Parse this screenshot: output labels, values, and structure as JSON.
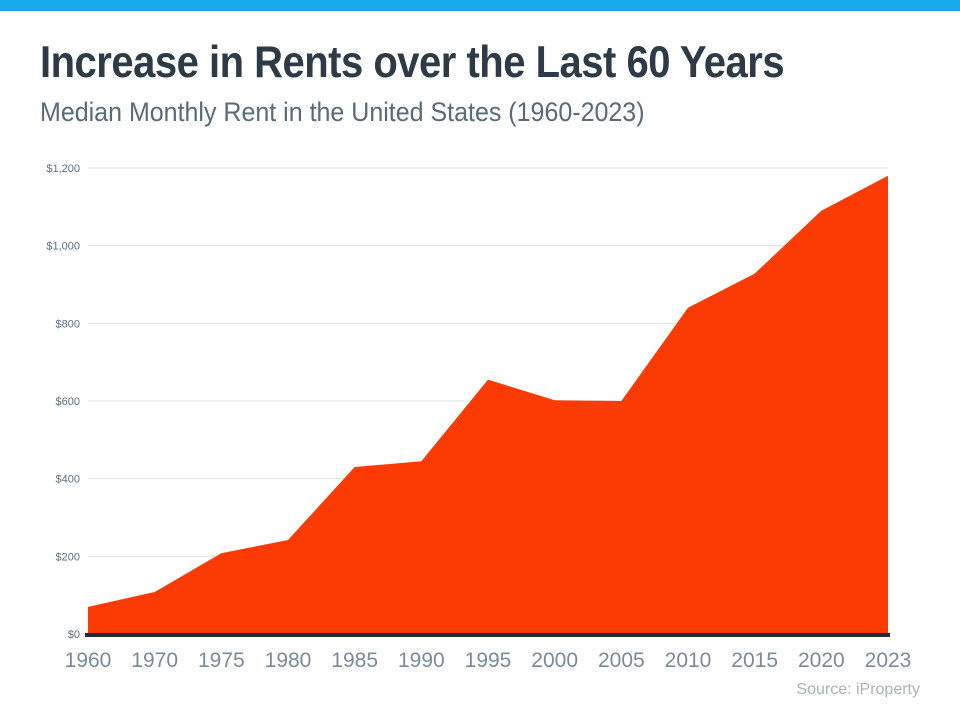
{
  "page": {
    "accent_bar_color": "#17A9EB",
    "background_color": "#FFFFFF"
  },
  "header": {
    "title": "Increase in Rents over the Last 60 Years",
    "subtitle": "Median Monthly Rent in the United States (1960-2023)"
  },
  "footer": {
    "source": "Source: iProperty"
  },
  "chart_data": {
    "type": "area",
    "title": "Increase in Rents over the Last 60 Years",
    "subtitle": "Median Monthly Rent in the United States (1960-2023)",
    "categories": [
      "1960",
      "1970",
      "1975",
      "1980",
      "1985",
      "1990",
      "1995",
      "2000",
      "2005",
      "2010",
      "2015",
      "2020",
      "2023"
    ],
    "values": [
      70,
      108,
      208,
      242,
      430,
      445,
      655,
      602,
      600,
      840,
      928,
      1090,
      1180
    ],
    "xlabel": "",
    "ylabel": "",
    "ylim": [
      0,
      1200
    ],
    "ytick_step": 200,
    "ytick_labels": [
      "$0",
      "$200",
      "$400",
      "$600",
      "$800",
      "$1,000",
      "$1,200"
    ],
    "grid": true,
    "legend": false,
    "legend_position": "none",
    "area_color": "#FC3A03",
    "gridline_color": "#DCDFE3",
    "baseline_color": "#232B36",
    "ytick_label_color": "#5E7080",
    "xtick_label_color": "#7B8A99",
    "source": "Source: iProperty"
  }
}
